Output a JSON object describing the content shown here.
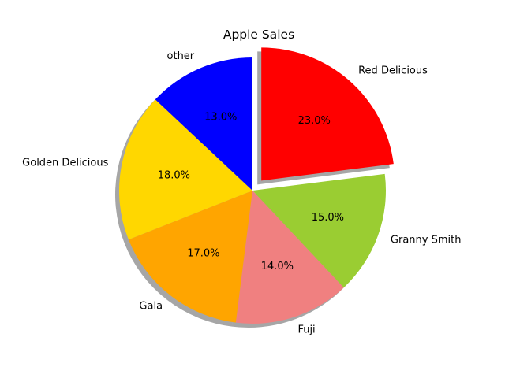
{
  "chart_data": {
    "type": "pie",
    "title": "Apple Sales",
    "slices": [
      {
        "label": "Red Delicious",
        "value": 23.0,
        "pct_label": "23.0%",
        "color": "#ff0000",
        "explode": true
      },
      {
        "label": "Granny Smith",
        "value": 15.0,
        "pct_label": "15.0%",
        "color": "#9acd32",
        "explode": false
      },
      {
        "label": "Fuji",
        "value": 14.0,
        "pct_label": "14.0%",
        "color": "#f08080",
        "explode": false
      },
      {
        "label": "Gala",
        "value": 17.0,
        "pct_label": "17.0%",
        "color": "#ffa500",
        "explode": false
      },
      {
        "label": "Golden Delicious",
        "value": 18.0,
        "pct_label": "18.0%",
        "color": "#ffd700",
        "explode": false
      },
      {
        "label": "other",
        "value": 13.0,
        "pct_label": "13.0%",
        "color": "#0000ff",
        "explode": false
      }
    ],
    "shadow": true
  }
}
